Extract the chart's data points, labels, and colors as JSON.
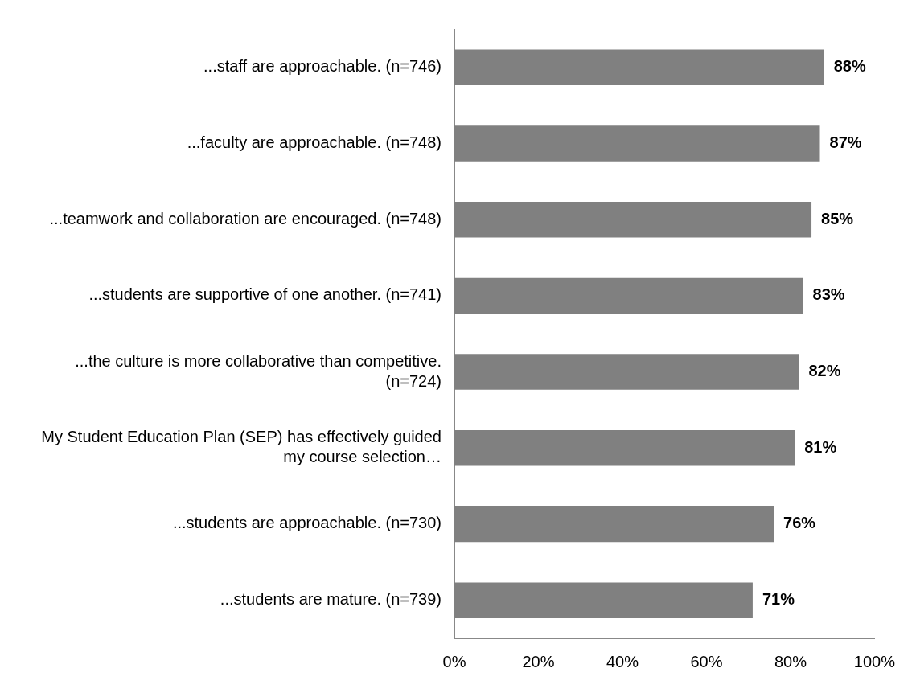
{
  "chart_data": {
    "type": "bar",
    "orientation": "horizontal",
    "categories": [
      "...staff are approachable. (n=746)",
      "...faculty are approachable. (n=748)",
      "...teamwork and collaboration are encouraged. (n=748)",
      "...students are supportive of one another. (n=741)",
      "...the culture is more collaborative than competitive. (n=724)",
      "My Student Education Plan (SEP) has effectively guided my course selection…",
      "...students are approachable. (n=730)",
      "...students are mature. (n=739)"
    ],
    "values": [
      88,
      87,
      85,
      83,
      82,
      81,
      76,
      71
    ],
    "value_labels": [
      "88%",
      "87%",
      "85%",
      "83%",
      "82%",
      "81%",
      "76%",
      "71%"
    ],
    "color": "#808080",
    "xlim": [
      0,
      100
    ],
    "xticks": [
      {
        "value": 0,
        "label": "0%"
      },
      {
        "value": 20,
        "label": "20%"
      },
      {
        "value": 40,
        "label": "40%"
      },
      {
        "value": 60,
        "label": "60%"
      },
      {
        "value": 80,
        "label": "80%"
      },
      {
        "value": 100,
        "label": "100%"
      }
    ],
    "grid": false,
    "legend": false
  }
}
